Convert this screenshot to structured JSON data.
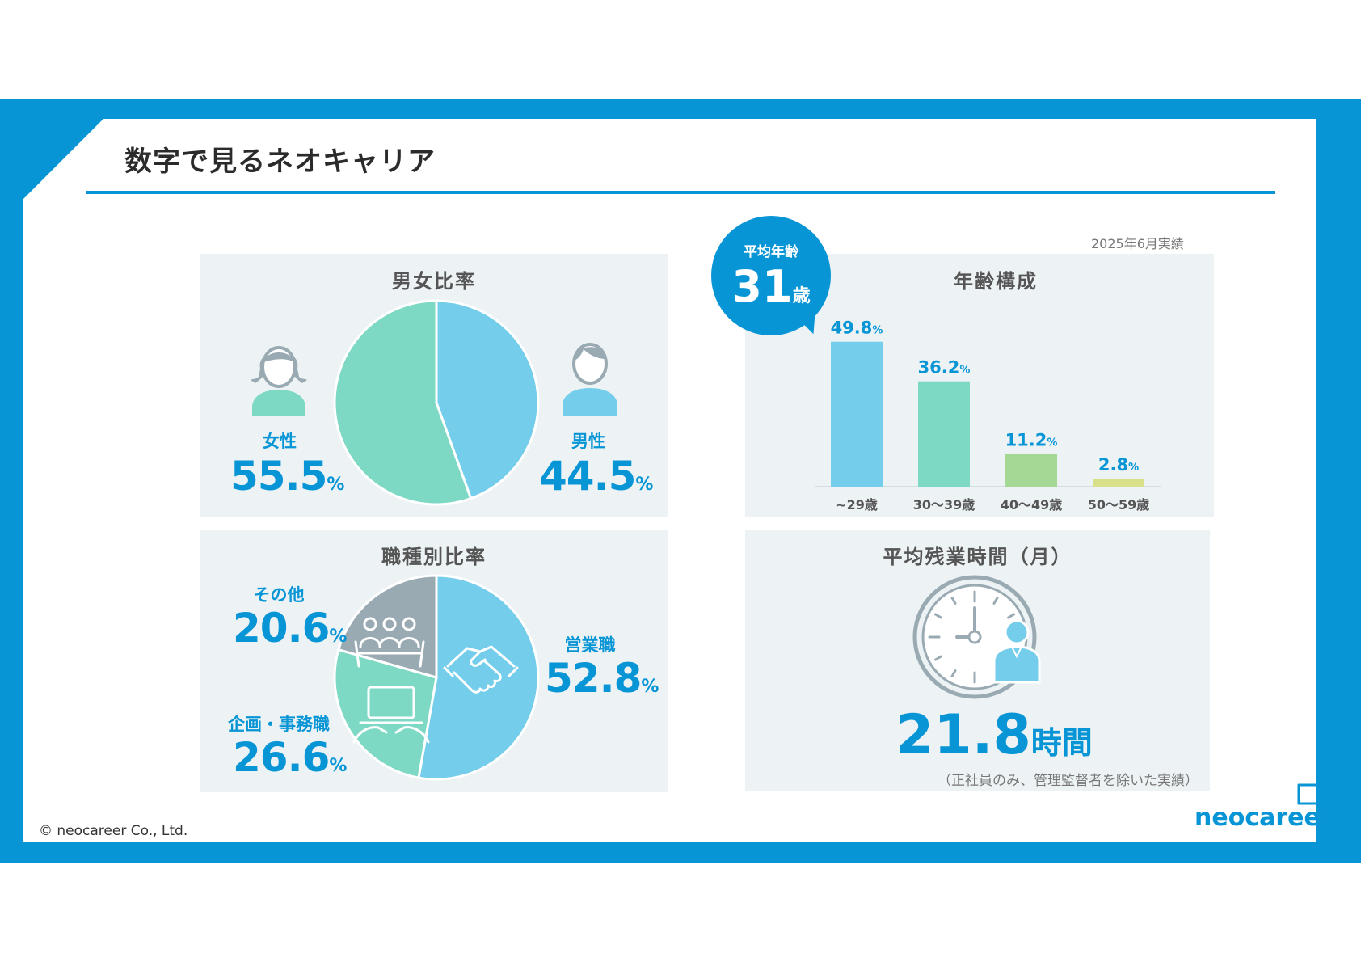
{
  "slide": {
    "title": "数字で見るネオキャリア",
    "copyright": "© neocareer Co., Ltd.",
    "logo": "neocareer",
    "accent_color": "#0895d6"
  },
  "gender": {
    "title": "男女比率",
    "female": {
      "label": "女性",
      "value": "55.5",
      "unit": "%"
    },
    "male": {
      "label": "男性",
      "value": "44.5",
      "unit": "%"
    }
  },
  "job": {
    "title": "職種別比率",
    "other": {
      "label": "その他",
      "value": "20.6",
      "unit": "%"
    },
    "admin": {
      "label": "企画・事務職",
      "value": "26.6",
      "unit": "%"
    },
    "sales": {
      "label": "営業職",
      "value": "52.8",
      "unit": "%"
    }
  },
  "age": {
    "title": "年齢構成",
    "date_note": "2025年6月実績",
    "avg_label": "平均年齢",
    "avg_value": "31",
    "avg_unit": "歳"
  },
  "overtime": {
    "title": "平均残業時間（月）",
    "value": "21.8",
    "unit": "時間",
    "note": "（正社員のみ、管理監督者を除いた実績）"
  },
  "chart_data": [
    {
      "type": "pie",
      "title": "男女比率",
      "categories": [
        "女性",
        "男性"
      ],
      "values": [
        55.5,
        44.5
      ],
      "colors": [
        "#7dd8c4",
        "#74cdeb"
      ]
    },
    {
      "type": "pie",
      "title": "職種別比率",
      "categories": [
        "営業職",
        "企画・事務職",
        "その他"
      ],
      "values": [
        52.8,
        26.6,
        20.6
      ],
      "colors": [
        "#74cdeb",
        "#7dd8c4",
        "#9aaab2"
      ]
    },
    {
      "type": "bar",
      "title": "年齢構成",
      "categories": [
        "~29歳",
        "30～39歳",
        "40～49歳",
        "50～59歳"
      ],
      "values": [
        49.8,
        36.2,
        11.2,
        2.8
      ],
      "value_labels": [
        "49.8",
        "36.2",
        "11.2",
        "2.8"
      ],
      "value_unit": "%",
      "colors": [
        "#74cdeb",
        "#7dd8c4",
        "#a4d894",
        "#d8e08a"
      ],
      "ylim": [
        0,
        50
      ],
      "grid": false
    }
  ]
}
